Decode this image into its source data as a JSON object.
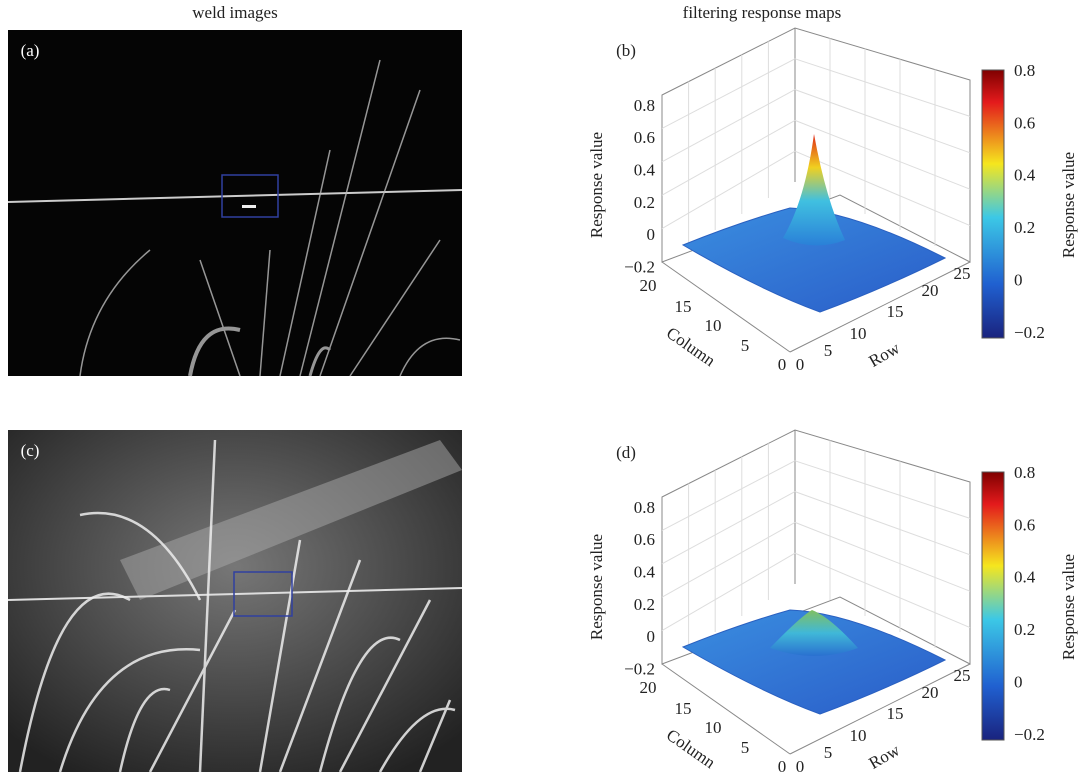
{
  "headings": {
    "left": "weld images",
    "right": "filtering response maps"
  },
  "images": [
    {
      "label": "(a)"
    },
    {
      "label": "(c)"
    }
  ],
  "plots": [
    {
      "label": "(b)",
      "z_label": "Response value",
      "z_ticks": [
        "0.8",
        "0.6",
        "0.4",
        "0.2",
        "0",
        "−0.2"
      ],
      "column_label": "Column",
      "column_ticks": [
        "20",
        "15",
        "10",
        "5",
        "0"
      ],
      "row_label": "Row",
      "row_ticks": [
        "0",
        "5",
        "10",
        "15",
        "20",
        "25"
      ],
      "colorbar_label": "Response value",
      "colorbar_ticks": [
        "0.8",
        "0.6",
        "0.4",
        "0.2",
        "0",
        "−0.2"
      ]
    },
    {
      "label": "(d)",
      "z_label": "Response value",
      "z_ticks": [
        "0.8",
        "0.6",
        "0.4",
        "0.2",
        "0",
        "−0.2"
      ],
      "column_label": "Column",
      "column_ticks": [
        "20",
        "15",
        "10",
        "5",
        "0"
      ],
      "row_label": "Row",
      "row_ticks": [
        "0",
        "5",
        "10",
        "15",
        "20",
        "25"
      ],
      "colorbar_label": "Response value",
      "colorbar_ticks": [
        "0.8",
        "0.6",
        "0.4",
        "0.2",
        "0",
        "−0.2"
      ]
    }
  ]
}
